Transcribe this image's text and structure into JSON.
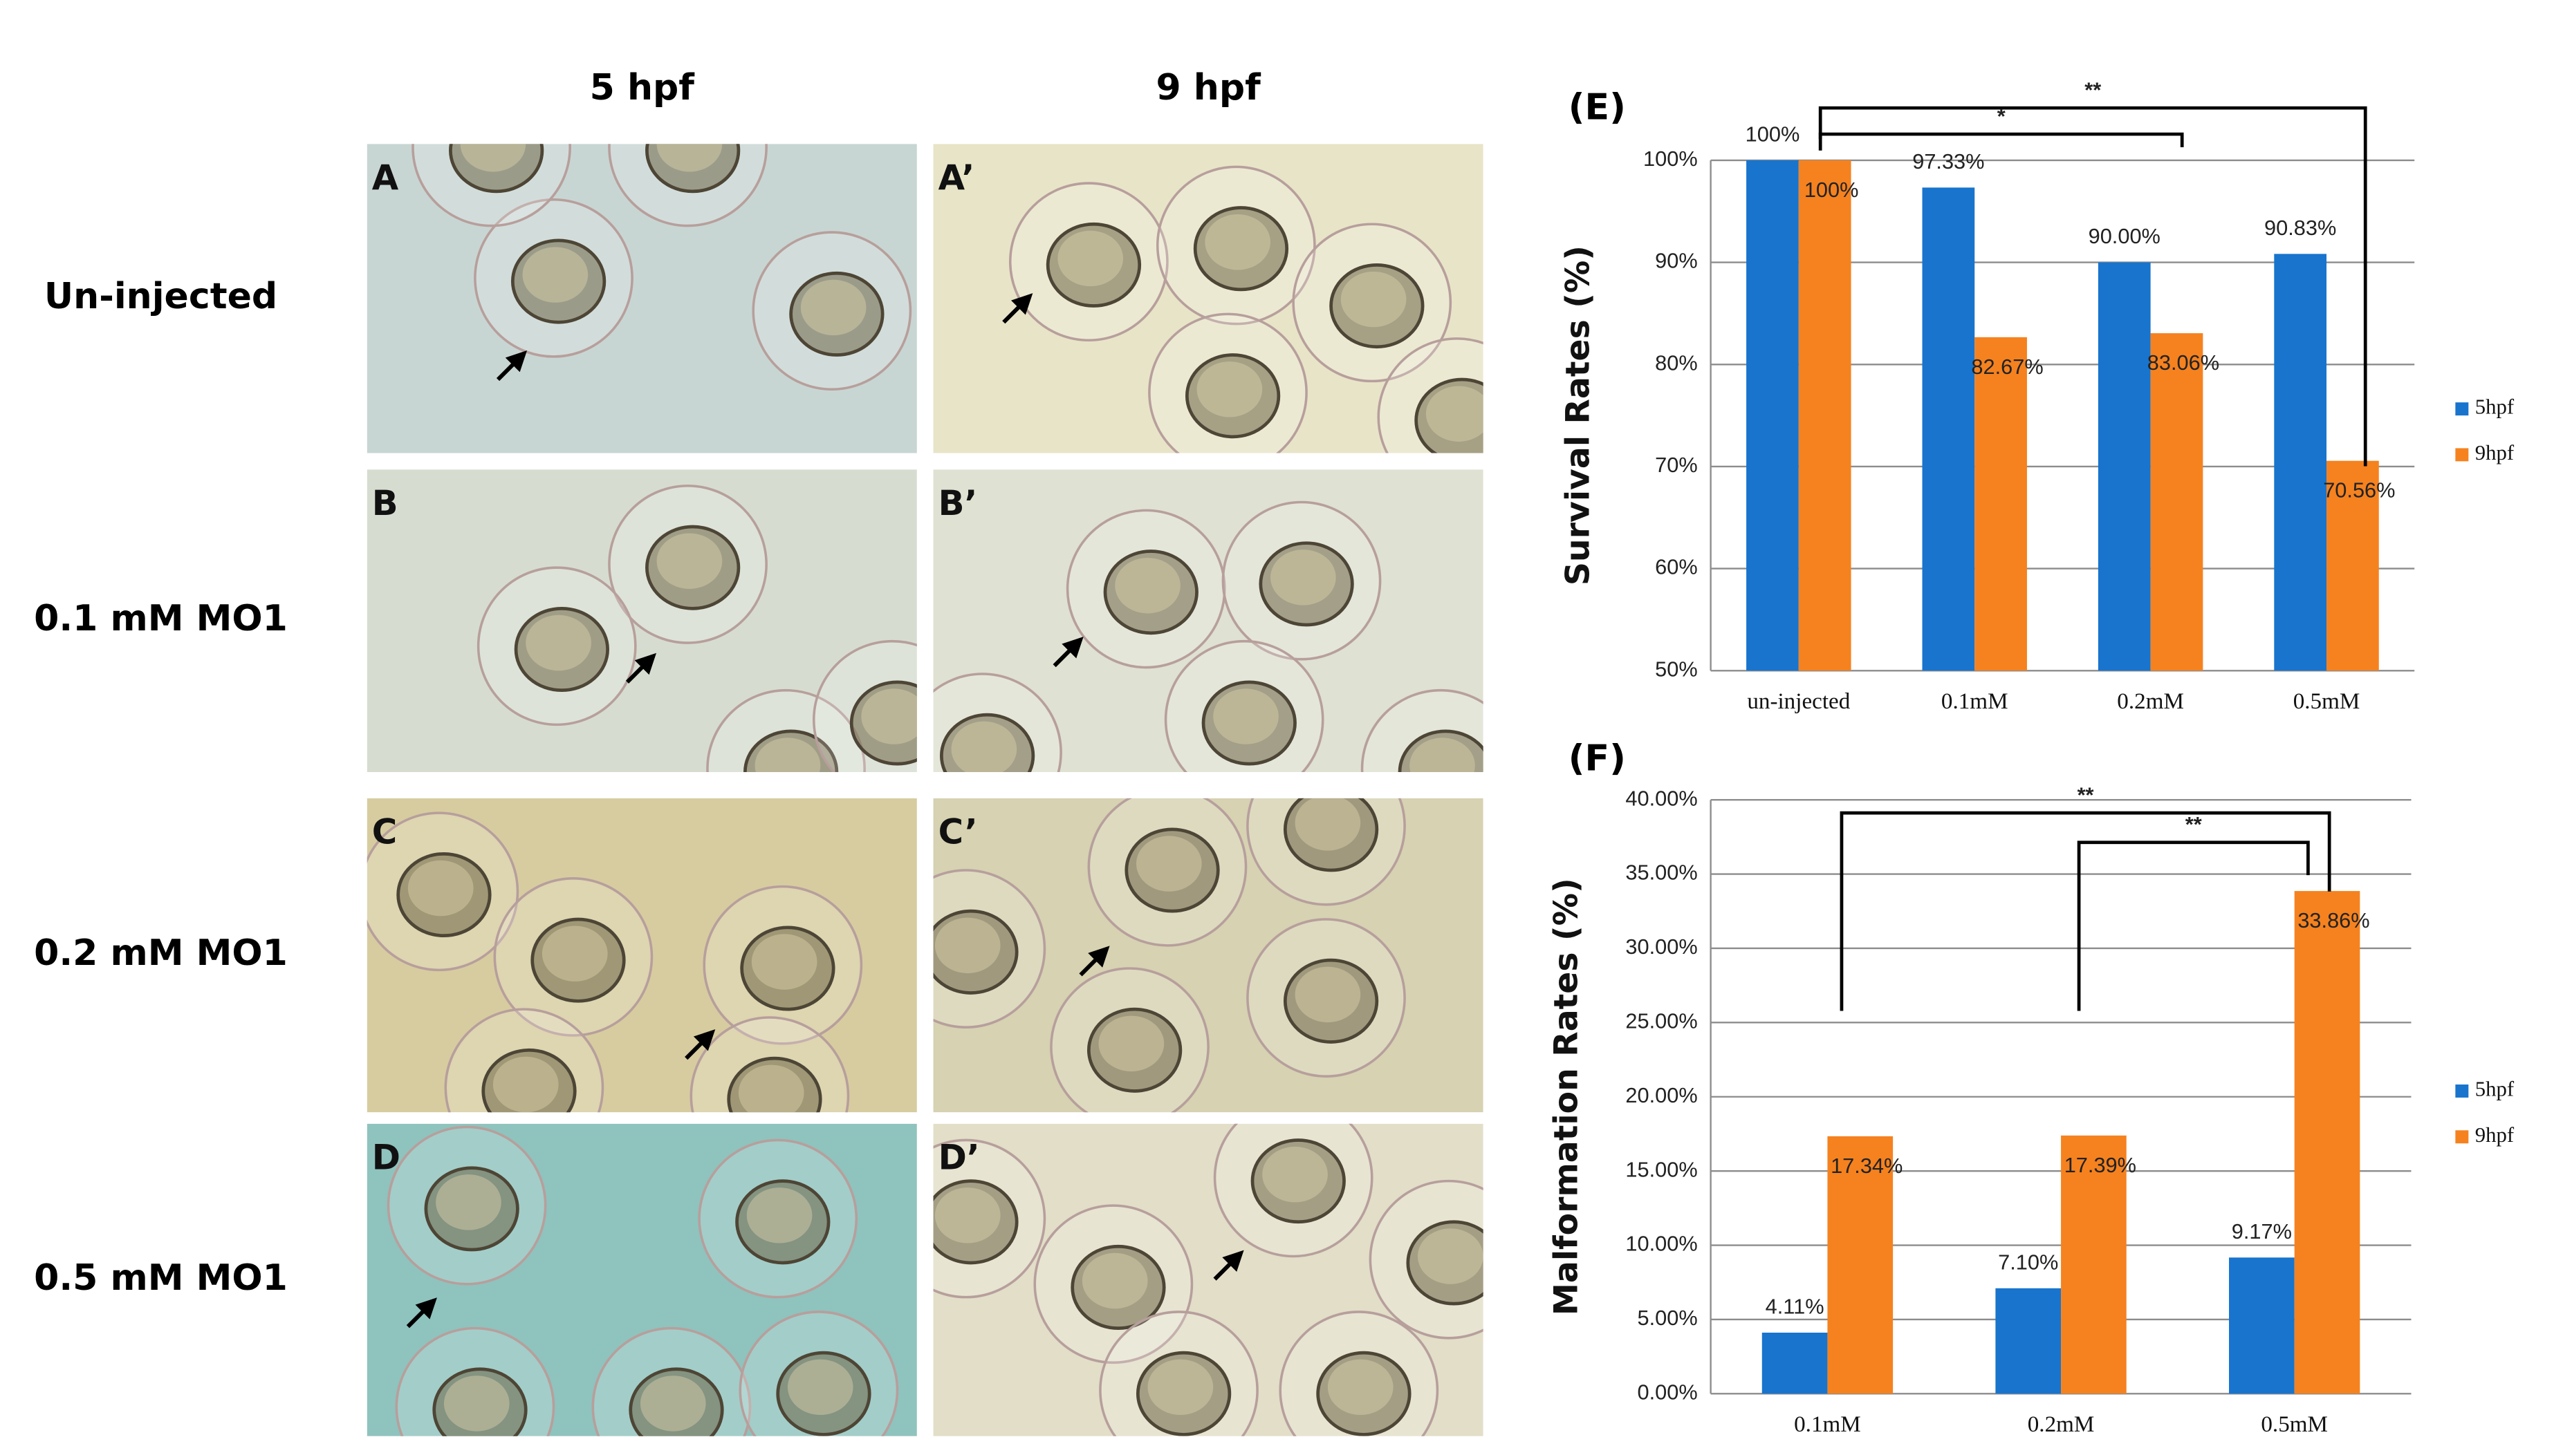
{
  "photo_panels": {
    "column_labels": [
      "5 hpf",
      "9 hpf"
    ],
    "row_labels": [
      "Un-injected",
      "0.1 mM MO1",
      "0.2 mM MO1",
      "0.5 mM MO1"
    ],
    "panel_labels": [
      [
        "A",
        "A’"
      ],
      [
        "B",
        "B’"
      ],
      [
        "C",
        "C’"
      ],
      [
        "D",
        "D’"
      ]
    ]
  },
  "chart_data": [
    {
      "type": "bar",
      "panel_label": "(E)",
      "y_label": "Survival Rates (%)",
      "categories": [
        "un-injected",
        "0.1mM",
        "0.2mM",
        "0.5mM"
      ],
      "series": [
        {
          "name": "5hpf",
          "color": "#1874cd",
          "values": [
            100,
            97.33,
            90.0,
            90.83
          ],
          "value_labels": [
            "100%",
            "97.33%",
            "90.00%",
            "90.83%"
          ]
        },
        {
          "name": "9hpf",
          "color": "#f5821f",
          "values": [
            100,
            82.67,
            83.06,
            70.56
          ],
          "value_labels": [
            "100%",
            "82.67%",
            "83.06%",
            "70.56%"
          ]
        }
      ],
      "ylim": [
        50,
        100
      ],
      "yticks": [
        {
          "value": 50,
          "label": "50%"
        },
        {
          "value": 60,
          "label": "60%"
        },
        {
          "value": 70,
          "label": "70%"
        },
        {
          "value": 80,
          "label": "80%"
        },
        {
          "value": 90,
          "label": "90%"
        },
        {
          "value": 100,
          "label": "100%"
        }
      ],
      "grid": true,
      "legend": "right",
      "annotations": [
        "**",
        "*"
      ]
    },
    {
      "type": "bar",
      "panel_label": "(F)",
      "y_label": "Malformation Rates (%)",
      "categories": [
        "0.1mM",
        "0.2mM",
        "0.5mM"
      ],
      "series": [
        {
          "name": "5hpf",
          "color": "#1874cd",
          "values": [
            4.11,
            7.1,
            9.17
          ],
          "value_labels": [
            "4.11%",
            "7.10%",
            "9.17%"
          ]
        },
        {
          "name": "9hpf",
          "color": "#f5821f",
          "values": [
            17.34,
            17.39,
            33.86
          ],
          "value_labels": [
            "17.34%",
            "17.39%",
            "33.86%"
          ]
        }
      ],
      "ylim": [
        0,
        40
      ],
      "yticks": [
        {
          "value": 0,
          "label": "0.00%"
        },
        {
          "value": 5,
          "label": "5.00%"
        },
        {
          "value": 10,
          "label": "10.00%"
        },
        {
          "value": 15,
          "label": "15.00%"
        },
        {
          "value": 20,
          "label": "20.00%"
        },
        {
          "value": 25,
          "label": "25.00%"
        },
        {
          "value": 30,
          "label": "30.00%"
        },
        {
          "value": 35,
          "label": "35.00%"
        },
        {
          "value": 40,
          "label": "40.00%"
        }
      ],
      "grid": true,
      "legend": "right",
      "annotations": [
        "**",
        "**"
      ]
    }
  ]
}
